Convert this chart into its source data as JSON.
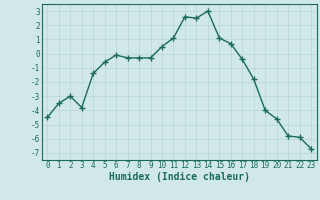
{
  "x": [
    0,
    1,
    2,
    3,
    4,
    5,
    6,
    7,
    8,
    9,
    10,
    11,
    12,
    13,
    14,
    15,
    16,
    17,
    18,
    19,
    20,
    21,
    22,
    23
  ],
  "y": [
    -4.5,
    -3.5,
    -3.0,
    -3.8,
    -1.4,
    -0.6,
    -0.1,
    -0.3,
    -0.3,
    -0.3,
    0.5,
    1.1,
    2.6,
    2.5,
    3.0,
    1.1,
    0.7,
    -0.4,
    -1.8,
    -4.0,
    -4.6,
    -5.8,
    -5.9,
    -6.7
  ],
  "line_color": "#1a6b5a",
  "marker": "+",
  "marker_size": 4,
  "line_width": 1.0,
  "bg_color": "#d0e8e8",
  "grid_color": "#b8d4d4",
  "xlabel": "Humidex (Indice chaleur)",
  "ylim": [
    -7.5,
    3.5
  ],
  "xlim": [
    -0.5,
    23.5
  ],
  "yticks": [
    -7,
    -6,
    -5,
    -4,
    -3,
    -2,
    -1,
    0,
    1,
    2,
    3
  ],
  "xticks": [
    0,
    1,
    2,
    3,
    4,
    5,
    6,
    7,
    8,
    9,
    10,
    11,
    12,
    13,
    14,
    15,
    16,
    17,
    18,
    19,
    20,
    21,
    22,
    23
  ],
  "tick_fontsize": 5.5,
  "xlabel_fontsize": 7.0,
  "tick_color": "#1a6b5a",
  "spine_color": "#1a6b5a"
}
